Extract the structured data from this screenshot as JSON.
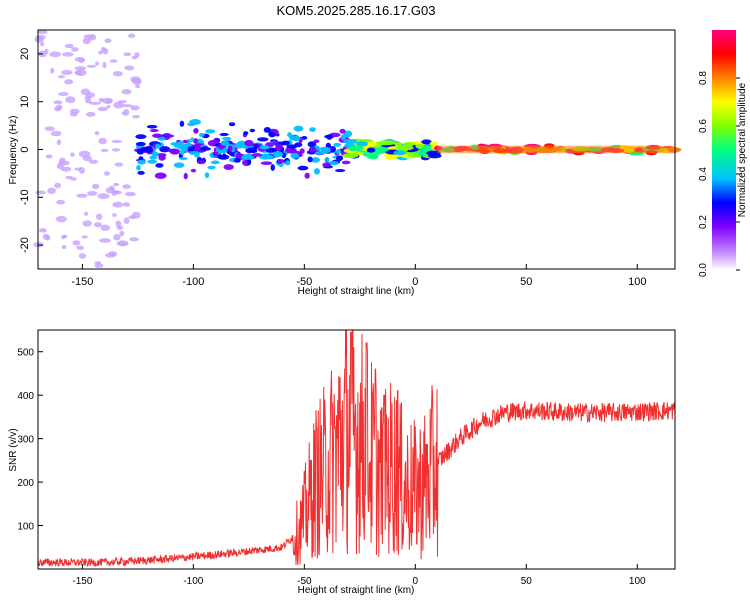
{
  "title": "KOM5.2025.285.16.17.G03",
  "chart_data": [
    {
      "type": "heatmap",
      "title": "KOM5.2025.285.16.17.G03",
      "xlabel": "Height of straight line (km)",
      "ylabel": "Frequency (Hz)",
      "xlim": [
        -170,
        117
      ],
      "ylim": [
        -25,
        25
      ],
      "xticks": [
        -150,
        -100,
        -50,
        0,
        50,
        100
      ],
      "yticks": [
        -20,
        -10,
        0,
        10,
        20
      ],
      "colorbar": {
        "label": "Normalized spectral amplitude",
        "range": [
          0,
          1
        ],
        "ticks": [
          "0.0",
          "0.2",
          "0.4",
          "0.6",
          "0.8"
        ],
        "tick_values": [
          0.0,
          0.2,
          0.4,
          0.6,
          0.8
        ],
        "colors": [
          "#ffffff",
          "#c080ff",
          "#8000ff",
          "#0000ff",
          "#00c0ff",
          "#00ff80",
          "#80ff00",
          "#ffff00",
          "#ff8000",
          "#ff0000",
          "#ff0080"
        ]
      },
      "features": [
        {
          "x": [
            -170,
            -125
          ],
          "freq_spread_hz": 25,
          "amplitude": 0.1
        },
        {
          "x": [
            -125,
            -30
          ],
          "freq_spread_hz": 6,
          "amplitude": 0.3
        },
        {
          "x": [
            -30,
            10
          ],
          "freq_spread_hz": 2,
          "amplitude": 0.5
        },
        {
          "x": [
            10,
            117
          ],
          "freq_spread_hz": 1,
          "amplitude": 0.9
        }
      ]
    },
    {
      "type": "line",
      "xlabel": "Height of straight line (km)",
      "ylabel": "SNR (v/v)",
      "xlim": [
        -170,
        117
      ],
      "ylim": [
        0,
        550
      ],
      "xticks": [
        -150,
        -100,
        -50,
        0,
        50,
        100
      ],
      "yticks": [
        100,
        200,
        300,
        400,
        500
      ],
      "color": "#f03030",
      "series_envelope": [
        {
          "x": -170,
          "y": 15
        },
        {
          "x": -140,
          "y": 15
        },
        {
          "x": -120,
          "y": 20
        },
        {
          "x": -100,
          "y": 28
        },
        {
          "x": -80,
          "y": 38
        },
        {
          "x": -60,
          "y": 50
        },
        {
          "x": -52,
          "y": 90
        },
        {
          "x": -45,
          "y": 200
        },
        {
          "x": -40,
          "y": 230
        },
        {
          "x": -35,
          "y": 280
        },
        {
          "x": -30,
          "y": 330
        },
        {
          "x": -25,
          "y": 300
        },
        {
          "x": -20,
          "y": 260
        },
        {
          "x": -15,
          "y": 210
        },
        {
          "x": -10,
          "y": 240
        },
        {
          "x": -5,
          "y": 190
        },
        {
          "x": 0,
          "y": 180
        },
        {
          "x": 5,
          "y": 200
        },
        {
          "x": 10,
          "y": 245
        },
        {
          "x": 20,
          "y": 300
        },
        {
          "x": 30,
          "y": 340
        },
        {
          "x": 40,
          "y": 360
        },
        {
          "x": 50,
          "y": 365
        },
        {
          "x": 70,
          "y": 360
        },
        {
          "x": 90,
          "y": 360
        },
        {
          "x": 117,
          "y": 365
        }
      ],
      "peaks": [
        {
          "x": -29,
          "y": 545
        },
        {
          "x": -22,
          "y": 520
        },
        {
          "x": -18,
          "y": 460
        },
        {
          "x": -14,
          "y": 400
        },
        {
          "x": -34,
          "y": 440
        },
        {
          "x": -8,
          "y": 410
        }
      ]
    }
  ]
}
